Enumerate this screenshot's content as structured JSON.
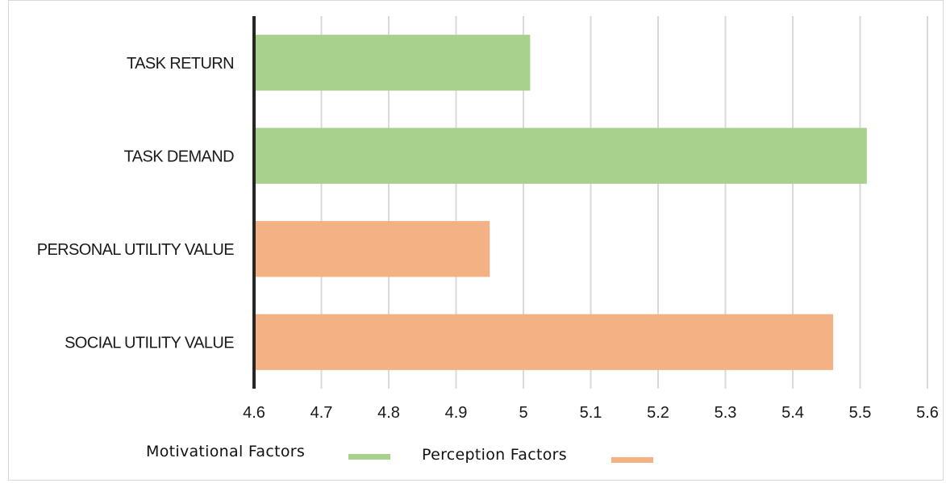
{
  "chart_data": {
    "type": "bar",
    "orientation": "horizontal",
    "categories": [
      "TASK RETURN",
      "TASK DEMAND",
      "PERSONAL UTILITY VALUE",
      "SOCIAL UTILITY VALUE"
    ],
    "values": [
      5.01,
      5.51,
      4.95,
      5.46
    ],
    "series_membership": [
      "Motivational Factors",
      "Motivational Factors",
      "Perception Factors",
      "Perception Factors"
    ],
    "series": [
      {
        "name": "Motivational Factors",
        "color": "#a9d18e"
      },
      {
        "name": "Perception Factors",
        "color": "#f4b183"
      }
    ],
    "xlim": [
      4.6,
      5.6
    ],
    "xticks": [
      "4.6",
      "4.7",
      "4.8",
      "4.9",
      "5",
      "5.1",
      "5.2",
      "5.3",
      "5.4",
      "5.5",
      "5.6"
    ],
    "title": "",
    "xlabel": "",
    "ylabel": "",
    "grid": "vertical",
    "legend_position": "bottom-left",
    "axis_color": "#262626",
    "grid_color": "#d9d9d9"
  }
}
